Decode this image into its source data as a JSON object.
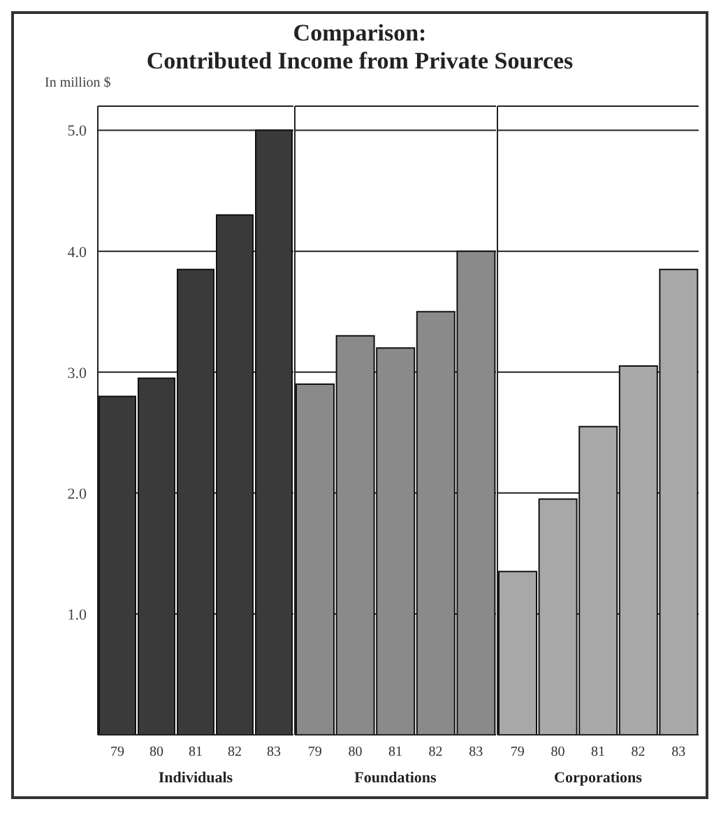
{
  "chart_data": [
    {
      "type": "bar",
      "title": "Comparison:\nContributed Income from Private Sources",
      "ylabel": "In million $",
      "xlabel": "Individuals",
      "categories": [
        "79",
        "80",
        "81",
        "82",
        "83"
      ],
      "values": [
        2.8,
        2.95,
        3.85,
        4.3,
        5.0
      ],
      "colors": [
        "#3a3a3a",
        "#3a3a3a",
        "#3a3a3a",
        "#3a3a3a",
        "#3a3a3a"
      ],
      "ylim": [
        0,
        5.2
      ],
      "yticks": [
        {
          "value": 1,
          "label": "1.0"
        },
        {
          "value": 2,
          "label": "2.0"
        },
        {
          "value": 3,
          "label": "3.0"
        },
        {
          "value": 4,
          "label": "4.0"
        },
        {
          "value": 5,
          "label": "5.0"
        }
      ],
      "grid": "y"
    },
    {
      "type": "bar",
      "xlabel": "Foundations",
      "categories": [
        "79",
        "80",
        "81",
        "82",
        "83"
      ],
      "values": [
        2.9,
        3.3,
        3.2,
        3.5,
        4.0
      ],
      "colors": [
        "#8a8a8a",
        "#8a8a8a",
        "#8a8a8a",
        "#8a8a8a",
        "#8a8a8a"
      ],
      "ylim": [
        0,
        5.2
      ],
      "yticks": [
        1,
        2,
        3,
        4,
        5
      ],
      "grid": "y",
      "tick_labels": "x"
    },
    {
      "type": "bar",
      "xlabel": "Corporations",
      "categories": [
        "79",
        "80",
        "81",
        "82",
        "83"
      ],
      "values": [
        1.35,
        1.95,
        2.55,
        3.05,
        3.85
      ],
      "colors": [
        "#a8a8a8",
        "#a8a8a8",
        "#a8a8a8",
        "#a8a8a8",
        "#a8a8a8"
      ],
      "ylim": [
        0,
        5.2
      ],
      "yticks": [
        1,
        2,
        3,
        4,
        5
      ],
      "grid": "y",
      "tick_labels": "x"
    }
  ]
}
